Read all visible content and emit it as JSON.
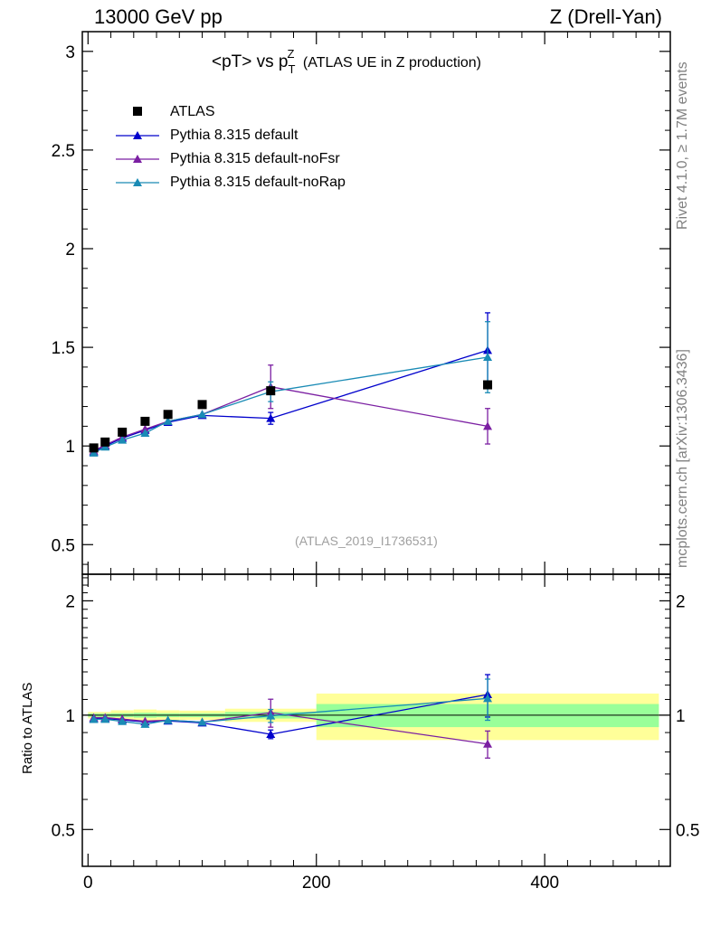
{
  "header": {
    "left": "13000 GeV pp",
    "right": "Z (Drell-Yan)"
  },
  "side_labels": {
    "rivet": "Rivet 4.1.0, ≥ 1.7M events",
    "mcplots": "mcplots.cern.ch [arXiv:1306.3436]"
  },
  "title": {
    "main": "<pT> vs p",
    "sub": "T",
    "sup": "Z",
    "tail": " (ATLAS UE in Z production)"
  },
  "analysis_tag": "(ATLAS_2019_I1736531)",
  "ratio_ylabel": "Ratio to ATLAS",
  "legend": [
    {
      "label": "ATLAS",
      "marker": "square",
      "color": "#000000"
    },
    {
      "label": "Pythia 8.315 default",
      "marker": "triangle",
      "color": "#0000cc"
    },
    {
      "label": "Pythia 8.315 default-noFsr",
      "marker": "triangle",
      "color": "#7b1fa2"
    },
    {
      "label": "Pythia 8.315 default-noRap",
      "marker": "triangle",
      "color": "#1a8bb5"
    }
  ],
  "chart_data": {
    "type": "scatter",
    "x_range": [
      -5,
      510
    ],
    "main_ylim": [
      0.35,
      3.1
    ],
    "ratio_ylim": [
      0.4,
      2.35
    ],
    "main_ticks": [
      "0.5",
      "1",
      "1.5",
      "2",
      "2.5",
      "3"
    ],
    "ratio_ticks": [
      "0.5",
      "1",
      "2"
    ],
    "x_ticks": [
      "0",
      "200",
      "400"
    ],
    "x": [
      5,
      15,
      30,
      50,
      70,
      100,
      160,
      350
    ],
    "data": {
      "name": "ATLAS",
      "values": [
        0.99,
        1.02,
        1.07,
        1.125,
        1.16,
        1.21,
        1.28,
        1.31
      ],
      "band_edges": [
        0,
        10,
        20,
        40,
        60,
        80,
        120,
        200,
        500
      ],
      "stat_rel": [
        0.01,
        0.01,
        0.012,
        0.015,
        0.012,
        0.012,
        0.02,
        0.07
      ],
      "total_rel": [
        0.02,
        0.02,
        0.03,
        0.035,
        0.03,
        0.028,
        0.04,
        0.14
      ]
    },
    "series": [
      {
        "name": "Pythia 8.315 default",
        "color": "#0000cc",
        "values": [
          0.97,
          1.0,
          1.04,
          1.08,
          1.12,
          1.155,
          1.14,
          1.485
        ],
        "errors": [
          0.005,
          0.005,
          0.005,
          0.008,
          0.01,
          0.012,
          0.03,
          0.19
        ]
      },
      {
        "name": "Pythia 8.315 default-noFsr",
        "color": "#7b1fa2",
        "values": [
          0.975,
          1.005,
          1.045,
          1.085,
          1.125,
          1.16,
          1.3,
          1.1
        ],
        "errors": [
          0.005,
          0.005,
          0.005,
          0.008,
          0.01,
          0.012,
          0.11,
          0.09
        ]
      },
      {
        "name": "Pythia 8.315 default-noRap",
        "color": "#1a8bb5",
        "values": [
          0.965,
          0.995,
          1.03,
          1.065,
          1.125,
          1.16,
          1.275,
          1.45
        ],
        "errors": [
          0.005,
          0.005,
          0.005,
          0.008,
          0.01,
          0.012,
          0.05,
          0.18
        ]
      }
    ]
  }
}
